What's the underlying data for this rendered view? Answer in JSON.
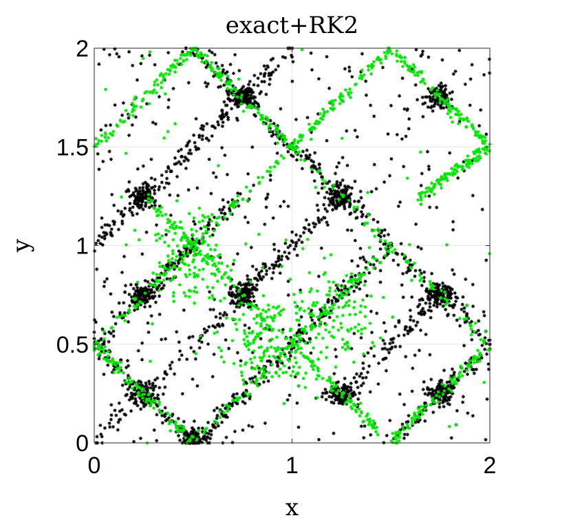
{
  "chart_data": {
    "type": "scatter",
    "title": "exact+RK2",
    "xlabel": "x",
    "ylabel": "y",
    "xlim": [
      0,
      2
    ],
    "ylim": [
      0,
      2
    ],
    "xticks": [
      0,
      1,
      2
    ],
    "yticks": [
      0,
      0.5,
      1,
      1.5,
      2
    ],
    "xtick_labels": [
      "0",
      "1",
      "2"
    ],
    "ytick_labels": [
      "0",
      "0.5",
      "1",
      "1.5",
      "2"
    ],
    "grid": true,
    "marker": "asterisk",
    "series_colors": [
      "#000000",
      "#00e600"
    ],
    "point_counts": [
      3200,
      1800
    ],
    "clusters": [
      [
        0.75,
        1.75
      ],
      [
        0.25,
        1.25
      ],
      [
        1.75,
        1.75
      ],
      [
        1.25,
        1.25
      ],
      [
        0.75,
        0.75
      ],
      [
        1.75,
        0.75
      ],
      [
        0.25,
        0.25
      ],
      [
        1.25,
        0.25
      ],
      [
        0.25,
        0.75
      ],
      [
        0.5,
        0.02
      ],
      [
        1.75,
        0.25
      ]
    ],
    "black_segments": [
      [
        [
          0.5,
          2.0
        ],
        [
          1.0,
          1.5
        ]
      ],
      [
        [
          1.0,
          1.5
        ],
        [
          1.5,
          1.0
        ]
      ],
      [
        [
          0.0,
          1.0
        ],
        [
          0.5,
          1.5
        ]
      ],
      [
        [
          0.5,
          1.5
        ],
        [
          1.0,
          2.0
        ]
      ],
      [
        [
          0.0,
          0.5
        ],
        [
          0.5,
          0.0
        ]
      ],
      [
        [
          0.5,
          0.0
        ],
        [
          1.0,
          0.5
        ]
      ],
      [
        [
          1.0,
          0.5
        ],
        [
          1.5,
          1.0
        ]
      ],
      [
        [
          0.25,
          0.75
        ],
        [
          0.75,
          1.25
        ]
      ],
      [
        [
          1.5,
          1.0
        ],
        [
          2.0,
          0.5
        ]
      ],
      [
        [
          0.0,
          0.0
        ],
        [
          1.0,
          1.0
        ]
      ],
      [
        [
          1.25,
          0.25
        ],
        [
          1.75,
          0.75
        ]
      ],
      [
        [
          1.5,
          0.0
        ],
        [
          2.0,
          0.5
        ]
      ],
      [
        [
          0.0,
          0.5
        ],
        [
          0.5,
          1.0
        ]
      ],
      [
        [
          0.75,
          0.75
        ],
        [
          1.25,
          1.25
        ]
      ]
    ],
    "green_segments": [
      [
        [
          0.0,
          1.5
        ],
        [
          0.5,
          2.0
        ]
      ],
      [
        [
          0.5,
          2.0
        ],
        [
          1.0,
          1.5
        ]
      ],
      [
        [
          1.0,
          1.5
        ],
        [
          1.5,
          2.0
        ]
      ],
      [
        [
          1.5,
          2.0
        ],
        [
          2.0,
          1.5
        ]
      ],
      [
        [
          0.0,
          0.5
        ],
        [
          1.0,
          1.5
        ]
      ],
      [
        [
          0.25,
          1.25
        ],
        [
          1.0,
          0.5
        ]
      ],
      [
        [
          1.0,
          1.5
        ],
        [
          2.0,
          0.5
        ]
      ],
      [
        [
          0.0,
          0.5
        ],
        [
          0.5,
          0.0
        ]
      ],
      [
        [
          0.5,
          0.0
        ],
        [
          1.5,
          1.0
        ]
      ],
      [
        [
          1.0,
          0.5
        ],
        [
          1.5,
          0.0
        ]
      ],
      [
        [
          1.5,
          0.0
        ],
        [
          2.0,
          0.5
        ]
      ],
      [
        [
          1.65,
          1.25
        ],
        [
          2.0,
          1.5
        ]
      ]
    ],
    "green_clouds": [
      [
        0.5,
        0.95
      ],
      [
        0.85,
        0.5
      ],
      [
        1.2,
        0.65
      ]
    ]
  }
}
